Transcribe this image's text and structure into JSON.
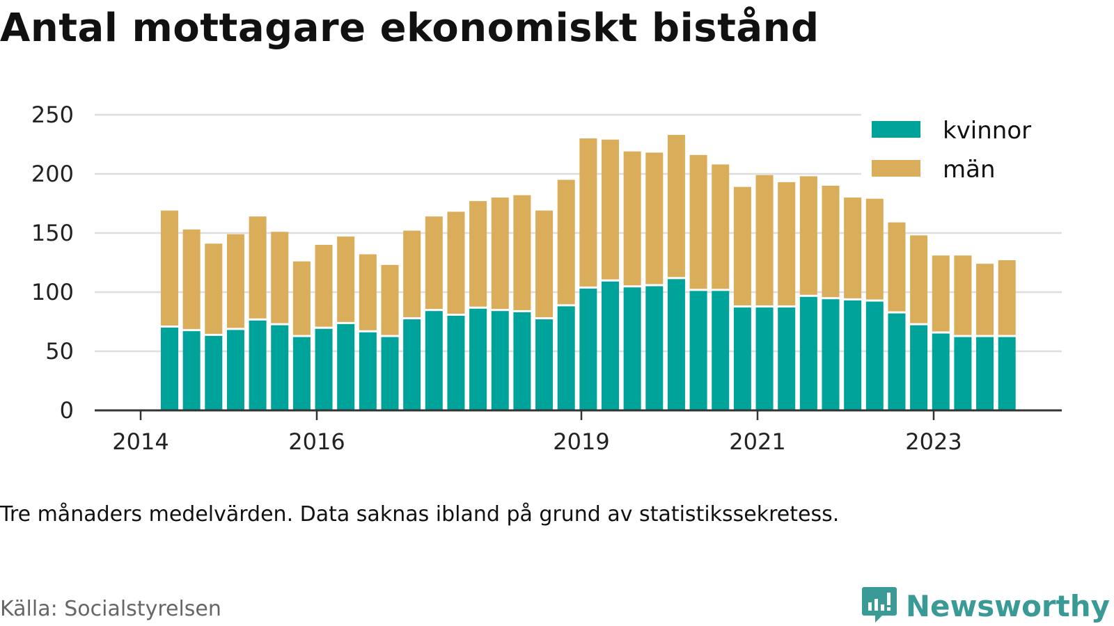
{
  "page": {
    "note": "Tre månaders medelvärden. Data saknas ibland på grund av statistikssekretess.",
    "source": "Källa: Socialstyrelsen",
    "brand": "Newsworthy",
    "brand_icon": "bar-chart-speech-bubble-icon",
    "colors": {
      "kvinnor": "#00a39a",
      "man": "#d9ad5a",
      "grid": "#dddddd",
      "axis": "#333333",
      "brand": "#3a9a95"
    }
  },
  "chart_data": {
    "type": "bar",
    "stacked": true,
    "title": "Antal mottagare ekonomiskt bistånd",
    "xlabel": "",
    "ylabel": "",
    "ylim": [
      0,
      250
    ],
    "yticks": [
      0,
      50,
      100,
      150,
      200,
      250
    ],
    "xtick_labels": [
      "2014",
      "2016",
      "2019",
      "2021",
      "2023"
    ],
    "legend": {
      "position": "top-right",
      "entries": [
        "kvinnor",
        "män"
      ]
    },
    "grid": true,
    "series": [
      {
        "name": "kvinnor",
        "values": [
          70,
          67,
          63,
          68,
          76,
          72,
          62,
          69,
          73,
          66,
          62,
          77,
          84,
          80,
          86,
          84,
          83,
          77,
          88,
          103,
          109,
          104,
          105,
          111,
          101,
          101,
          87,
          87,
          87,
          96,
          94,
          93,
          92,
          82,
          72,
          65,
          62,
          62,
          62
        ]
      },
      {
        "name": "män",
        "values": [
          99,
          86,
          78,
          81,
          88,
          79,
          64,
          71,
          74,
          66,
          61,
          75,
          80,
          88,
          91,
          96,
          99,
          92,
          107,
          127,
          120,
          115,
          113,
          122,
          115,
          107,
          102,
          112,
          106,
          102,
          96,
          87,
          87,
          77,
          76,
          66,
          69,
          62,
          65
        ]
      }
    ]
  }
}
